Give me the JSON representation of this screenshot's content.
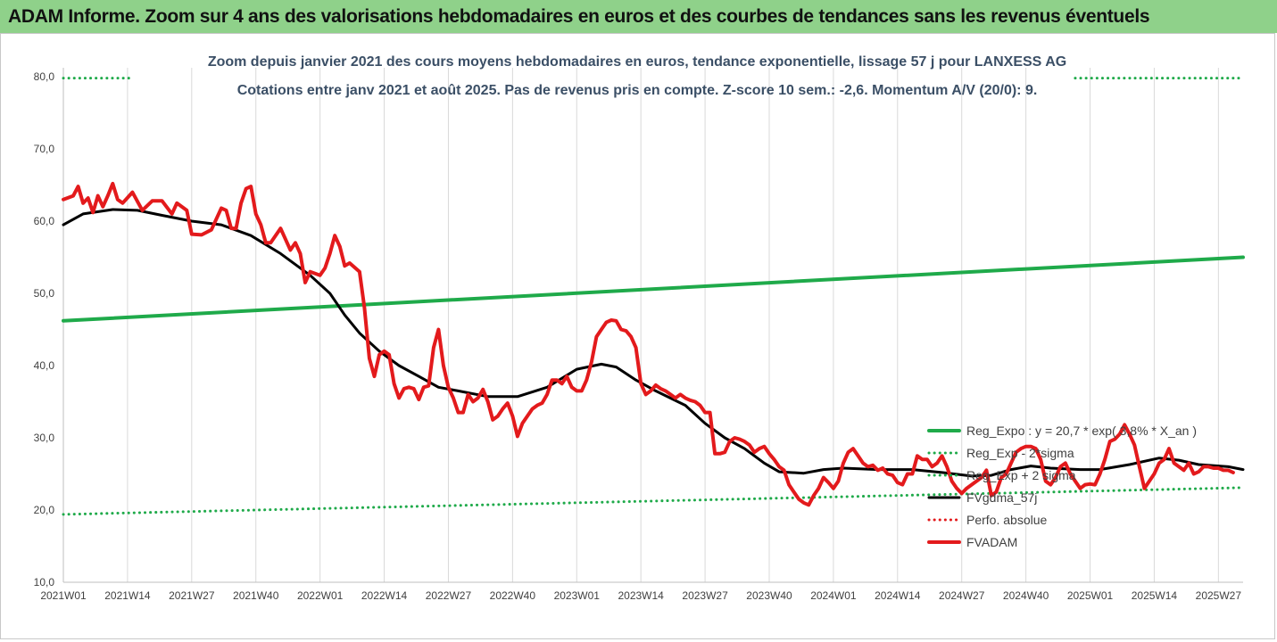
{
  "header": {
    "title": "ADAM Informe. Zoom sur 4 ans des valorisations hebdomadaires en euros et des courbes de tendances sans les revenus éventuels"
  },
  "colors": {
    "banner": "#8fd18a",
    "reg_expo": "#1faa4a",
    "sigma": "#1faa4a",
    "fvgdma": "#000000",
    "perfo": "#e31a1c",
    "fvadam": "#e31a1c",
    "grid": "#d9d9d9"
  },
  "chart_data": {
    "type": "line",
    "title": "Zoom depuis janvier 2021 des cours moyens hebdomadaires en euros, tendance exponentielle, lissage 57 j pour LANXESS AG",
    "subtitle": "Cotations entre janv 2021 et août 2025. Pas de revenus pris en compte. Z-score 10 sem.: -2,6. Momentum A/V (20/0): 9.",
    "ylim": [
      10,
      80
    ],
    "y_ticks": [
      "80,0",
      "70,0",
      "60,0",
      "50,0",
      "40,0",
      "30,0",
      "20,0",
      "10,0"
    ],
    "y_tick_values": [
      80,
      70,
      60,
      50,
      40,
      30,
      20,
      10
    ],
    "x_ticks": [
      "2021W01",
      "2021W14",
      "2021W27",
      "2021W40",
      "2022W01",
      "2022W14",
      "2022W27",
      "2022W40",
      "2023W01",
      "2023W14",
      "2023W27",
      "2023W40",
      "2024W01",
      "2024W14",
      "2024W27",
      "2024W40",
      "2025W01",
      "2025W14",
      "2025W27"
    ],
    "x_tick_index": [
      0,
      13,
      26,
      39,
      52,
      65,
      78,
      91,
      104,
      117,
      130,
      143,
      156,
      169,
      182,
      195,
      208,
      221,
      234
    ],
    "n_weeks": 240,
    "grid": "vertical",
    "legend_position": "right",
    "legend": [
      "Reg_Expo : y = 20,7 * exp( 3,8% *  X_an )",
      "Reg_Exp - 2*sigma",
      "Reg_Exp + 2 sigma",
      "FVgdma_57j",
      "Perfo. absolue",
      "FVADAM"
    ],
    "series": [
      {
        "name": "Reg_Expo : y = 20,7 * exp( 3,8% *  X_an )",
        "style": "solid-thick",
        "points": [
          [
            0,
            46.2
          ],
          [
            239,
            55.0
          ]
        ]
      },
      {
        "name": "Reg_Exp - 2*sigma",
        "style": "dotted",
        "points": [
          [
            0,
            19.4
          ],
          [
            239,
            23.1
          ]
        ]
      },
      {
        "name": "Reg_Exp + 2 sigma",
        "style": "dotted",
        "points": [
          [
            0,
            79.8
          ],
          [
            14,
            79.8
          ]
        ],
        "points_end": [
          [
            205,
            79.8
          ],
          [
            239,
            79.8
          ]
        ]
      },
      {
        "name": "FVgdma_57j",
        "style": "solid",
        "points": [
          [
            0,
            59.5
          ],
          [
            4,
            61.0
          ],
          [
            10,
            61.6
          ],
          [
            15,
            61.5
          ],
          [
            20,
            60.8
          ],
          [
            26,
            60.0
          ],
          [
            32,
            59.5
          ],
          [
            38,
            58.0
          ],
          [
            44,
            55.5
          ],
          [
            50,
            52.5
          ],
          [
            54,
            50.0
          ],
          [
            57,
            47.0
          ],
          [
            60,
            44.5
          ],
          [
            64,
            42.0
          ],
          [
            68,
            40.0
          ],
          [
            72,
            38.5
          ],
          [
            76,
            37.0
          ],
          [
            80,
            36.5
          ],
          [
            86,
            35.7
          ],
          [
            92,
            35.7
          ],
          [
            98,
            37.0
          ],
          [
            104,
            39.5
          ],
          [
            109,
            40.2
          ],
          [
            112,
            39.8
          ],
          [
            116,
            38.0
          ],
          [
            120,
            36.5
          ],
          [
            126,
            34.5
          ],
          [
            130,
            32.0
          ],
          [
            134,
            30.0
          ],
          [
            138,
            28.5
          ],
          [
            142,
            26.5
          ],
          [
            145,
            25.3
          ],
          [
            150,
            25.1
          ],
          [
            154,
            25.6
          ],
          [
            158,
            25.8
          ],
          [
            165,
            25.6
          ],
          [
            172,
            25.6
          ],
          [
            178,
            25.2
          ],
          [
            184,
            24.7
          ],
          [
            188,
            24.8
          ],
          [
            192,
            25.6
          ],
          [
            196,
            26.1
          ],
          [
            200,
            25.8
          ],
          [
            206,
            25.6
          ],
          [
            210,
            25.6
          ],
          [
            216,
            26.3
          ],
          [
            222,
            27.2
          ],
          [
            226,
            26.9
          ],
          [
            230,
            26.3
          ],
          [
            236,
            26.0
          ],
          [
            239,
            25.6
          ]
        ]
      },
      {
        "name": "FVADAM",
        "style": "solid-thick",
        "points": [
          [
            0,
            63.0
          ],
          [
            2,
            63.5
          ],
          [
            3,
            64.8
          ],
          [
            4,
            62.5
          ],
          [
            5,
            63.2
          ],
          [
            6,
            61.2
          ],
          [
            7,
            63.5
          ],
          [
            8,
            62.0
          ],
          [
            9,
            63.5
          ],
          [
            10,
            65.2
          ],
          [
            11,
            63.0
          ],
          [
            12,
            62.5
          ],
          [
            14,
            64.0
          ],
          [
            16,
            61.5
          ],
          [
            18,
            62.8
          ],
          [
            20,
            62.8
          ],
          [
            22,
            61.0
          ],
          [
            23,
            62.5
          ],
          [
            25,
            61.5
          ],
          [
            26,
            58.2
          ],
          [
            28,
            58.1
          ],
          [
            30,
            58.8
          ],
          [
            32,
            61.8
          ],
          [
            33,
            61.5
          ],
          [
            34,
            59.0
          ],
          [
            35,
            59.0
          ],
          [
            36,
            62.5
          ],
          [
            37,
            64.5
          ],
          [
            38,
            64.8
          ],
          [
            39,
            61.0
          ],
          [
            40,
            59.5
          ],
          [
            41,
            57.0
          ],
          [
            42,
            57.0
          ],
          [
            44,
            59.0
          ],
          [
            46,
            56.0
          ],
          [
            47,
            57.0
          ],
          [
            48,
            55.5
          ],
          [
            49,
            51.5
          ],
          [
            50,
            53.0
          ],
          [
            52,
            52.5
          ],
          [
            53,
            53.5
          ],
          [
            54,
            55.5
          ],
          [
            55,
            58.0
          ],
          [
            56,
            56.5
          ],
          [
            57,
            53.8
          ],
          [
            58,
            54.2
          ],
          [
            60,
            53.0
          ],
          [
            61,
            48.0
          ],
          [
            62,
            41.0
          ],
          [
            63,
            38.5
          ],
          [
            64,
            41.5
          ],
          [
            65,
            42.0
          ],
          [
            66,
            41.5
          ],
          [
            67,
            37.5
          ],
          [
            68,
            35.5
          ],
          [
            69,
            36.8
          ],
          [
            70,
            37.0
          ],
          [
            71,
            36.8
          ],
          [
            72,
            35.3
          ],
          [
            73,
            37.0
          ],
          [
            74,
            37.2
          ],
          [
            75,
            42.5
          ],
          [
            76,
            45.0
          ],
          [
            77,
            40.0
          ],
          [
            78,
            37.0
          ],
          [
            79,
            35.5
          ],
          [
            80,
            33.5
          ],
          [
            81,
            33.5
          ],
          [
            82,
            36.0
          ],
          [
            83,
            35.0
          ],
          [
            84,
            35.5
          ],
          [
            85,
            36.7
          ],
          [
            86,
            35.0
          ],
          [
            87,
            32.5
          ],
          [
            88,
            33.0
          ],
          [
            89,
            34.0
          ],
          [
            90,
            34.8
          ],
          [
            91,
            33.0
          ],
          [
            92,
            30.2
          ],
          [
            93,
            32.0
          ],
          [
            94,
            33.0
          ],
          [
            95,
            34.0
          ],
          [
            96,
            34.5
          ],
          [
            97,
            34.8
          ],
          [
            98,
            36.0
          ],
          [
            99,
            38.0
          ],
          [
            100,
            38.0
          ],
          [
            101,
            37.5
          ],
          [
            102,
            38.5
          ],
          [
            103,
            37.0
          ],
          [
            104,
            36.5
          ],
          [
            105,
            36.5
          ],
          [
            106,
            38.0
          ],
          [
            107,
            40.5
          ],
          [
            108,
            44.0
          ],
          [
            109,
            45.0
          ],
          [
            110,
            46.0
          ],
          [
            111,
            46.3
          ],
          [
            112,
            46.2
          ],
          [
            113,
            45.0
          ],
          [
            114,
            44.8
          ],
          [
            115,
            44.0
          ],
          [
            116,
            42.5
          ],
          [
            117,
            37.5
          ],
          [
            118,
            36.0
          ],
          [
            119,
            36.5
          ],
          [
            120,
            37.3
          ],
          [
            121,
            36.8
          ],
          [
            122,
            36.5
          ],
          [
            123,
            36.0
          ],
          [
            124,
            35.5
          ],
          [
            125,
            36.0
          ],
          [
            126,
            35.5
          ],
          [
            127,
            35.2
          ],
          [
            128,
            35.0
          ],
          [
            129,
            34.5
          ],
          [
            130,
            33.5
          ],
          [
            131,
            33.5
          ],
          [
            132,
            27.8
          ],
          [
            133,
            27.8
          ],
          [
            134,
            28.0
          ],
          [
            135,
            29.5
          ],
          [
            136,
            30.0
          ],
          [
            137,
            29.8
          ],
          [
            138,
            29.5
          ],
          [
            139,
            29.0
          ],
          [
            140,
            28.0
          ],
          [
            141,
            28.5
          ],
          [
            142,
            28.8
          ],
          [
            143,
            27.8
          ],
          [
            144,
            27.0
          ],
          [
            145,
            26.0
          ],
          [
            146,
            25.5
          ],
          [
            147,
            23.5
          ],
          [
            148,
            22.5
          ],
          [
            149,
            21.5
          ],
          [
            150,
            21.0
          ],
          [
            151,
            20.7
          ],
          [
            152,
            22.0
          ],
          [
            153,
            23.0
          ],
          [
            154,
            24.5
          ],
          [
            155,
            23.8
          ],
          [
            156,
            23.0
          ],
          [
            157,
            24.0
          ],
          [
            158,
            26.5
          ],
          [
            159,
            28.0
          ],
          [
            160,
            28.5
          ],
          [
            161,
            27.5
          ],
          [
            162,
            26.5
          ],
          [
            163,
            26.0
          ],
          [
            164,
            26.2
          ],
          [
            165,
            25.5
          ],
          [
            166,
            25.8
          ],
          [
            167,
            25.0
          ],
          [
            168,
            24.8
          ],
          [
            169,
            23.8
          ],
          [
            170,
            23.5
          ],
          [
            171,
            25.0
          ],
          [
            172,
            25.0
          ],
          [
            173,
            27.5
          ],
          [
            174,
            27.0
          ],
          [
            175,
            27.0
          ],
          [
            176,
            26.0
          ],
          [
            177,
            26.5
          ],
          [
            178,
            27.5
          ],
          [
            179,
            26.0
          ],
          [
            180,
            24.0
          ],
          [
            181,
            23.0
          ],
          [
            182,
            22.3
          ],
          [
            183,
            23.0
          ],
          [
            184,
            23.5
          ],
          [
            185,
            24.0
          ],
          [
            186,
            24.5
          ],
          [
            187,
            25.5
          ],
          [
            188,
            22.0
          ],
          [
            189,
            22.5
          ],
          [
            190,
            24.5
          ],
          [
            191,
            25.0
          ],
          [
            192,
            26.5
          ],
          [
            193,
            28.0
          ],
          [
            194,
            28.5
          ],
          [
            195,
            28.8
          ],
          [
            196,
            28.8
          ],
          [
            197,
            28.5
          ],
          [
            198,
            27.0
          ],
          [
            199,
            24.0
          ],
          [
            200,
            23.5
          ],
          [
            201,
            24.5
          ],
          [
            202,
            26.0
          ],
          [
            203,
            26.5
          ],
          [
            204,
            25.0
          ],
          [
            205,
            24.0
          ],
          [
            206,
            23.0
          ],
          [
            207,
            23.5
          ],
          [
            208,
            23.6
          ],
          [
            209,
            23.5
          ],
          [
            210,
            25.0
          ],
          [
            211,
            27.0
          ],
          [
            212,
            29.5
          ],
          [
            213,
            29.8
          ],
          [
            214,
            30.5
          ],
          [
            215,
            31.8
          ],
          [
            216,
            30.5
          ],
          [
            217,
            29.0
          ],
          [
            218,
            26.0
          ],
          [
            219,
            23.0
          ],
          [
            220,
            24.0
          ],
          [
            221,
            25.0
          ],
          [
            222,
            26.5
          ],
          [
            223,
            27.0
          ],
          [
            224,
            28.5
          ],
          [
            225,
            26.5
          ],
          [
            226,
            26.0
          ],
          [
            227,
            25.5
          ],
          [
            228,
            26.5
          ],
          [
            229,
            25.0
          ],
          [
            230,
            25.3
          ],
          [
            231,
            26.0
          ],
          [
            232,
            26.0
          ],
          [
            233,
            25.8
          ],
          [
            234,
            25.8
          ],
          [
            235,
            25.5
          ],
          [
            236,
            25.5
          ],
          [
            237,
            25.2
          ]
        ]
      }
    ]
  }
}
